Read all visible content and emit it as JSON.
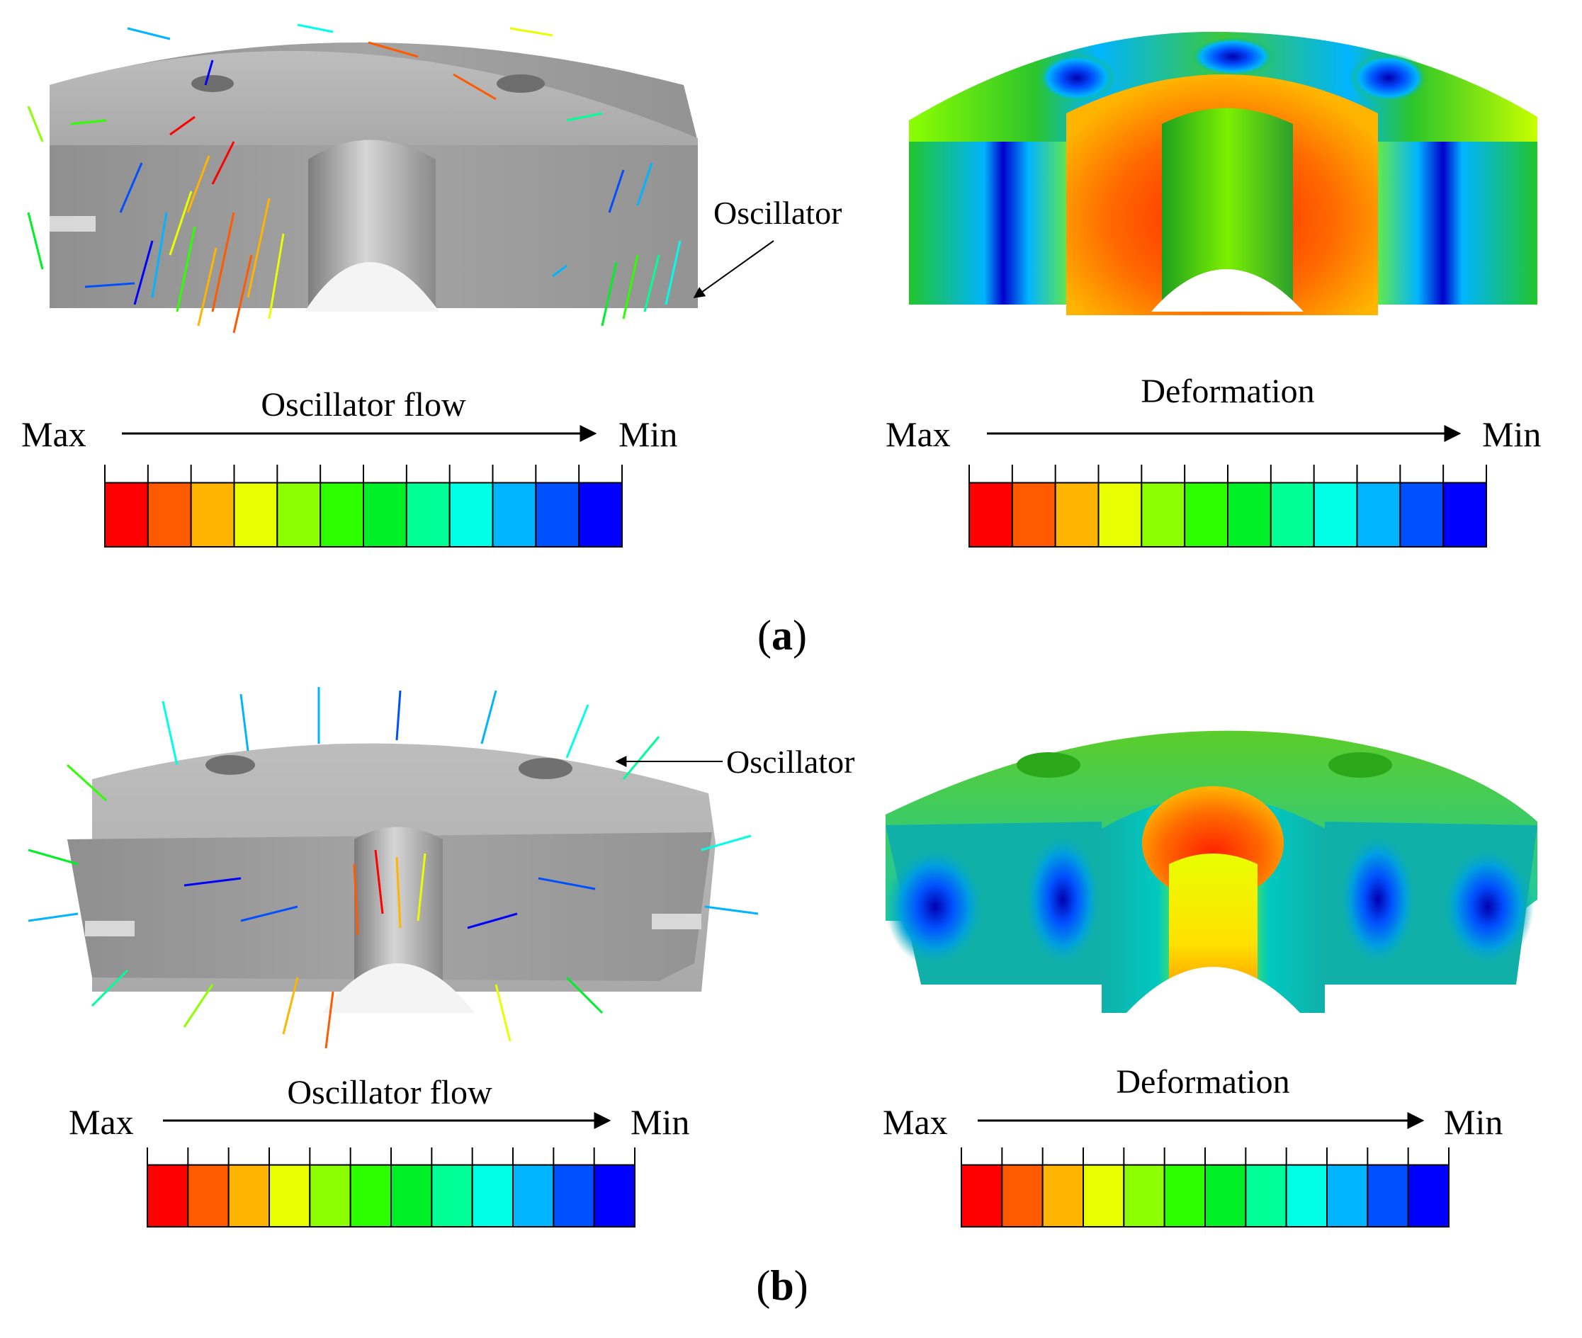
{
  "palette": [
    "#ff0000",
    "#ff5a00",
    "#ffb400",
    "#e8ff00",
    "#8cff00",
    "#2cff00",
    "#00f028",
    "#00ff96",
    "#00ffe6",
    "#00b4ff",
    "#0050ff",
    "#0000ff"
  ],
  "panels": [
    {
      "id": "a",
      "caption_open": "(",
      "caption_letter": "a",
      "caption_close": ")",
      "flow": {
        "callout": "Oscillator",
        "legend_title": "Oscillator flow",
        "legend_max": "Max",
        "legend_min": "Min"
      },
      "deformation": {
        "legend_title": "Deformation",
        "legend_max": "Max",
        "legend_min": "Min"
      }
    },
    {
      "id": "b",
      "caption_open": "(",
      "caption_letter": "b",
      "caption_close": ")",
      "flow": {
        "callout": "Oscillator",
        "legend_title": "Oscillator flow",
        "legend_max": "Max",
        "legend_min": "Min"
      },
      "deformation": {
        "legend_title": "Deformation",
        "legend_max": "Max",
        "legend_min": "Min"
      }
    }
  ],
  "icons": {
    "max_to_min_arrow": "right-arrow-icon",
    "callout_arrow": "leader-arrow-icon"
  }
}
